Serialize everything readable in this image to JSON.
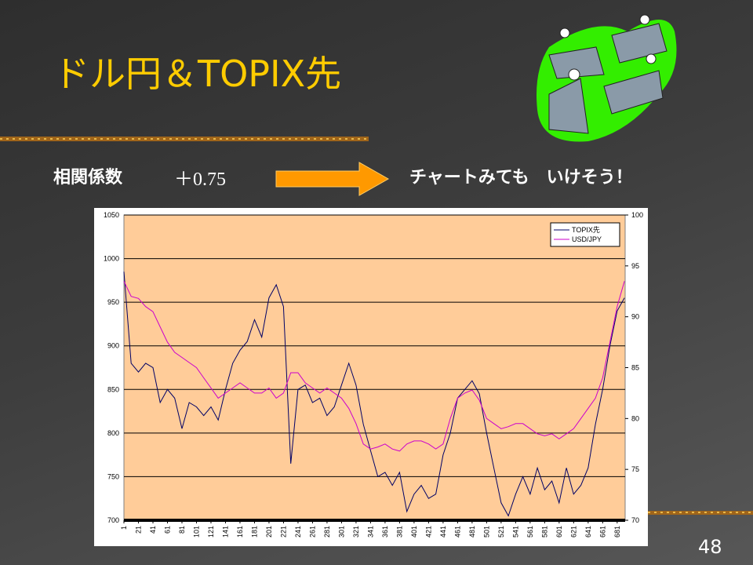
{
  "slide": {
    "title": "ドル円＆TOPIX先",
    "corr_label": "相関係数",
    "corr_value": "＋0.75",
    "comment": "チャートみても　いけそう！",
    "page_number": "48"
  },
  "chart_data": {
    "type": "line",
    "x": [
      1,
      11,
      21,
      31,
      41,
      51,
      61,
      71,
      81,
      91,
      101,
      111,
      121,
      131,
      141,
      151,
      161,
      171,
      181,
      191,
      201,
      211,
      221,
      231,
      241,
      251,
      261,
      271,
      281,
      291,
      301,
      311,
      321,
      331,
      341,
      351,
      361,
      371,
      381,
      391,
      401,
      411,
      421,
      431,
      441,
      451,
      461,
      471,
      481,
      491,
      501,
      511,
      521,
      531,
      541,
      551,
      561,
      571,
      581,
      591,
      601,
      611,
      621,
      631,
      641,
      651,
      661,
      671,
      681,
      691
    ],
    "series": [
      {
        "name": "TOPIX先",
        "color": "#000066",
        "values": [
          985,
          880,
          870,
          880,
          875,
          835,
          850,
          840,
          805,
          835,
          830,
          820,
          830,
          815,
          850,
          880,
          895,
          905,
          930,
          910,
          955,
          970,
          945,
          765,
          850,
          855,
          835,
          840,
          820,
          830,
          855,
          880,
          855,
          810,
          780,
          750,
          755,
          740,
          755,
          710,
          730,
          740,
          725,
          730,
          775,
          800,
          840,
          850,
          860,
          845,
          800,
          760,
          720,
          705,
          730,
          750,
          730,
          760,
          735,
          745,
          720,
          760,
          730,
          740,
          760,
          810,
          850,
          900,
          940,
          955
        ]
      },
      {
        "name": "USD/JPY",
        "color": "#cc00cc",
        "axis": "y2",
        "values": [
          93.5,
          92.0,
          91.8,
          91.0,
          90.5,
          89.0,
          87.5,
          86.5,
          86.0,
          85.5,
          85.0,
          84.0,
          83.0,
          82.0,
          82.5,
          83.0,
          83.5,
          83.0,
          82.5,
          82.5,
          83.0,
          82.0,
          82.5,
          84.5,
          84.5,
          83.5,
          83.0,
          82.5,
          83.0,
          82.5,
          82.0,
          81.0,
          79.5,
          77.5,
          77.0,
          77.2,
          77.5,
          77.0,
          76.8,
          77.5,
          77.8,
          77.8,
          77.5,
          77.0,
          77.5,
          80.0,
          82.0,
          82.5,
          82.8,
          81.8,
          80.0,
          79.5,
          79.0,
          79.2,
          79.5,
          79.5,
          79.0,
          78.5,
          78.3,
          78.5,
          78.0,
          78.5,
          79.0,
          80.0,
          81.0,
          82.0,
          84.0,
          87.5,
          91.0,
          93.5
        ]
      }
    ],
    "xlim": [
      1,
      692
    ],
    "xticks": [
      1,
      21,
      41,
      61,
      81,
      101,
      121,
      141,
      161,
      181,
      201,
      221,
      241,
      261,
      281,
      301,
      321,
      341,
      361,
      381,
      401,
      421,
      441,
      461,
      481,
      501,
      521,
      541,
      561,
      581,
      601,
      621,
      641,
      661,
      681
    ],
    "ylim": [
      700,
      1050
    ],
    "yticks": [
      700,
      750,
      800,
      850,
      900,
      950,
      1000,
      1050
    ],
    "y2lim": [
      70,
      100
    ],
    "y2ticks": [
      70,
      75,
      80,
      85,
      90,
      95,
      100
    ],
    "grid": true,
    "legend": "top-right"
  }
}
